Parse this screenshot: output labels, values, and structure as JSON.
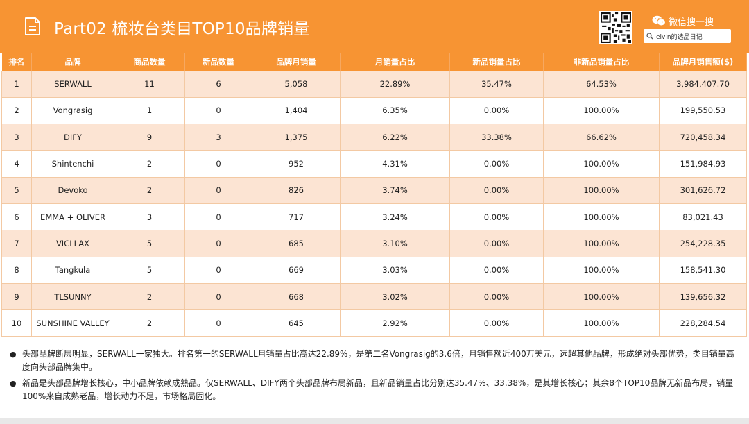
{
  "header": {
    "title": "Part02 梳妆台类目TOP10品牌销量",
    "wechat_label": "微信搜一搜",
    "search_text": "elvin的选品日记",
    "accent_color": "#f79433",
    "icons": [
      "document-icon",
      "qr-code-icon",
      "wechat-icon",
      "search-icon"
    ]
  },
  "table": {
    "columns": [
      "排名",
      "品牌",
      "商品数量",
      "新品数量",
      "品牌月销量",
      "月销量占比",
      "新品销量占比",
      "非新品销量占比",
      "品牌月销售额($)"
    ],
    "rows": [
      [
        "1",
        "SERWALL",
        "11",
        "6",
        "5,058",
        "22.89%",
        "35.47%",
        "64.53%",
        "3,984,407.70"
      ],
      [
        "2",
        "Vongrasig",
        "1",
        "0",
        "1,404",
        "6.35%",
        "0.00%",
        "100.00%",
        "199,550.53"
      ],
      [
        "3",
        "DIFY",
        "9",
        "3",
        "1,375",
        "6.22%",
        "33.38%",
        "66.62%",
        "720,458.34"
      ],
      [
        "4",
        "Shintenchi",
        "2",
        "0",
        "952",
        "4.31%",
        "0.00%",
        "100.00%",
        "151,984.93"
      ],
      [
        "5",
        "Devoko",
        "2",
        "0",
        "826",
        "3.74%",
        "0.00%",
        "100.00%",
        "301,626.72"
      ],
      [
        "6",
        "EMMA + OLIVER",
        "3",
        "0",
        "717",
        "3.24%",
        "0.00%",
        "100.00%",
        "83,021.43"
      ],
      [
        "7",
        "VICLLAX",
        "5",
        "0",
        "685",
        "3.10%",
        "0.00%",
        "100.00%",
        "254,228.35"
      ],
      [
        "8",
        "Tangkula",
        "5",
        "0",
        "669",
        "3.03%",
        "0.00%",
        "100.00%",
        "158,541.30"
      ],
      [
        "9",
        "TLSUNNY",
        "2",
        "0",
        "668",
        "3.02%",
        "0.00%",
        "100.00%",
        "139,656.32"
      ],
      [
        "10",
        "SUNSHINE VALLEY",
        "2",
        "0",
        "645",
        "2.92%",
        "0.00%",
        "100.00%",
        "228,284.54"
      ]
    ]
  },
  "notes": [
    "头部品牌断层明显，SERWALL一家独大。排名第一的SERWALL月销量占比高达22.89%，是第二名Vongrasig的3.6倍，月销售额近400万美元，远超其他品牌，形成绝对头部优势，类目销量高度向头部品牌集中。",
    "新品是头部品牌增长核心，中小品牌依赖成熟品。仅SERWALL、DIFY两个头部品牌布局新品，且新品销量占比分别达35.47%、33.38%，是其增长核心；其余8个TOP10品牌无新品布局，销量100%来自成熟老品，增长动力不足，市场格局固化。"
  ]
}
